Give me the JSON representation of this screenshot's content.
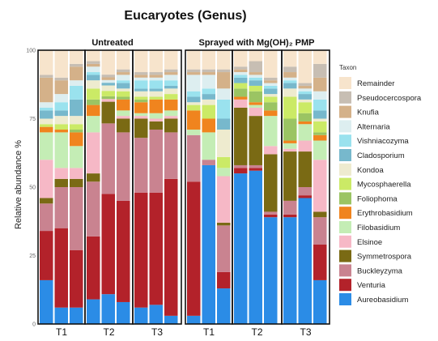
{
  "chart_data": {
    "type": "bar",
    "stacked": true,
    "title": "Eucaryotes (Genus)",
    "ylabel": "Relative abundance %",
    "ylim": [
      0,
      100
    ],
    "yticks": [
      "0",
      "25",
      "50",
      "75",
      "100"
    ],
    "legend_title": "Taxon",
    "legend_position": "right",
    "panels": [
      {
        "label": "Untreated",
        "groups": [
          "T1",
          "T2",
          "T3"
        ]
      },
      {
        "label": "Sprayed with Mg(OH)₂ PMP",
        "groups": [
          "T1",
          "T2",
          "T3"
        ]
      }
    ],
    "taxa": [
      {
        "name": "Aureobasidium",
        "color": "#2B8CE6"
      },
      {
        "name": "Venturia",
        "color": "#B3222A"
      },
      {
        "name": "Buckleyzyma",
        "color": "#C98390"
      },
      {
        "name": "Symmetrospora",
        "color": "#7A6A14"
      },
      {
        "name": "Elsinoe",
        "color": "#F6B8C6"
      },
      {
        "name": "Filobasidium",
        "color": "#C4EDB5"
      },
      {
        "name": "Erythrobasidium",
        "color": "#F0841E"
      },
      {
        "name": "Foliophoma",
        "color": "#9BC463"
      },
      {
        "name": "Mycosphaerella",
        "color": "#CBEA66"
      },
      {
        "name": "Kondoa",
        "color": "#EEEBCF"
      },
      {
        "name": "Cladosporium",
        "color": "#77B8CC"
      },
      {
        "name": "Vishniacozyma",
        "color": "#9AE2EE"
      },
      {
        "name": "Alternaria",
        "color": "#DDEEF0"
      },
      {
        "name": "Knufia",
        "color": "#D4B189"
      },
      {
        "name": "Pseudocercospora",
        "color": "#C7BEB3"
      },
      {
        "name": "Remainder",
        "color": "#F7E4CC"
      }
    ],
    "samples": [
      {
        "panel": 0,
        "group": "T1",
        "values": [
          16,
          18,
          10,
          2,
          14,
          10,
          2,
          0,
          1,
          2,
          3,
          1,
          2,
          9,
          1,
          9
        ]
      },
      {
        "panel": 0,
        "group": "T1",
        "values": [
          6,
          29,
          15,
          3,
          4,
          13,
          1,
          0,
          2,
          3,
          2,
          3,
          3,
          5,
          1,
          10
        ]
      },
      {
        "panel": 0,
        "group": "T1",
        "values": [
          6,
          21,
          23,
          3,
          4,
          8,
          5,
          1,
          2,
          3,
          6,
          5,
          2,
          5,
          1,
          5
        ]
      },
      {
        "panel": 1,
        "group": "T2",
        "values": [
          9,
          23,
          20,
          3,
          15,
          6,
          4,
          2,
          4,
          3,
          2,
          1,
          2,
          1,
          1,
          4
        ]
      },
      {
        "panel": 1,
        "group": "T2",
        "values": [
          11,
          37,
          26,
          8,
          1,
          0,
          0,
          1,
          2,
          2,
          1,
          0,
          1,
          1,
          1,
          9
        ]
      },
      {
        "panel": 1,
        "group": "T2",
        "values": [
          8,
          37,
          25,
          5,
          1,
          2,
          4,
          1,
          2,
          1,
          2,
          1,
          2,
          1,
          1,
          7
        ]
      },
      {
        "panel": 2,
        "group": "T3",
        "values": [
          6,
          42,
          20,
          7,
          1,
          1,
          4,
          1,
          1,
          2,
          1,
          3,
          1,
          1,
          1,
          8
        ]
      },
      {
        "panel": 2,
        "group": "T3",
        "values": [
          7,
          41,
          23,
          3,
          1,
          2,
          5,
          0,
          1,
          2,
          1,
          3,
          1,
          1,
          1,
          8
        ]
      },
      {
        "panel": 2,
        "group": "T3",
        "values": [
          3,
          50,
          17,
          5,
          1,
          2,
          4,
          0,
          2,
          2,
          1,
          2,
          2,
          1,
          1,
          7
        ]
      },
      {
        "panel": 3,
        "group": "T1",
        "values": [
          3,
          49,
          17,
          0,
          0,
          2,
          7,
          0,
          2,
          1,
          2,
          2,
          6,
          1,
          1,
          7
        ]
      },
      {
        "panel": 3,
        "group": "T1",
        "values": [
          58,
          0,
          2,
          0,
          0,
          10,
          5,
          0,
          5,
          2,
          2,
          2,
          5,
          1,
          1,
          7
        ]
      },
      {
        "panel": 3,
        "group": "T1",
        "values": [
          13,
          6,
          17,
          1,
          17,
          3,
          0,
          0,
          4,
          10,
          4,
          7,
          4,
          6,
          1,
          7
        ]
      },
      {
        "panel": 4,
        "group": "T2",
        "values": [
          55,
          2,
          1,
          21,
          3,
          0,
          1,
          3,
          2,
          0,
          2,
          1,
          1,
          1,
          1,
          6
        ]
      },
      {
        "panel": 4,
        "group": "T2",
        "values": [
          56,
          1,
          1,
          18,
          3,
          1,
          1,
          4,
          2,
          0,
          2,
          1,
          1,
          1,
          4,
          4
        ]
      },
      {
        "panel": 4,
        "group": "T2",
        "values": [
          39,
          1,
          1,
          21,
          3,
          11,
          2,
          3,
          2,
          1,
          2,
          1,
          1,
          1,
          1,
          10
        ]
      },
      {
        "panel": 5,
        "group": "T3",
        "values": [
          39,
          1,
          5,
          18,
          1,
          2,
          1,
          8,
          8,
          3,
          2,
          1,
          1,
          2,
          2,
          6
        ]
      },
      {
        "panel": 5,
        "group": "T3",
        "values": [
          46,
          1,
          3,
          13,
          4,
          6,
          1,
          3,
          4,
          1,
          2,
          1,
          1,
          1,
          1,
          12
        ]
      },
      {
        "panel": 5,
        "group": "T3",
        "values": [
          16,
          13,
          10,
          2,
          19,
          7,
          2,
          1,
          4,
          1,
          3,
          4,
          3,
          5,
          5,
          5
        ]
      }
    ]
  }
}
